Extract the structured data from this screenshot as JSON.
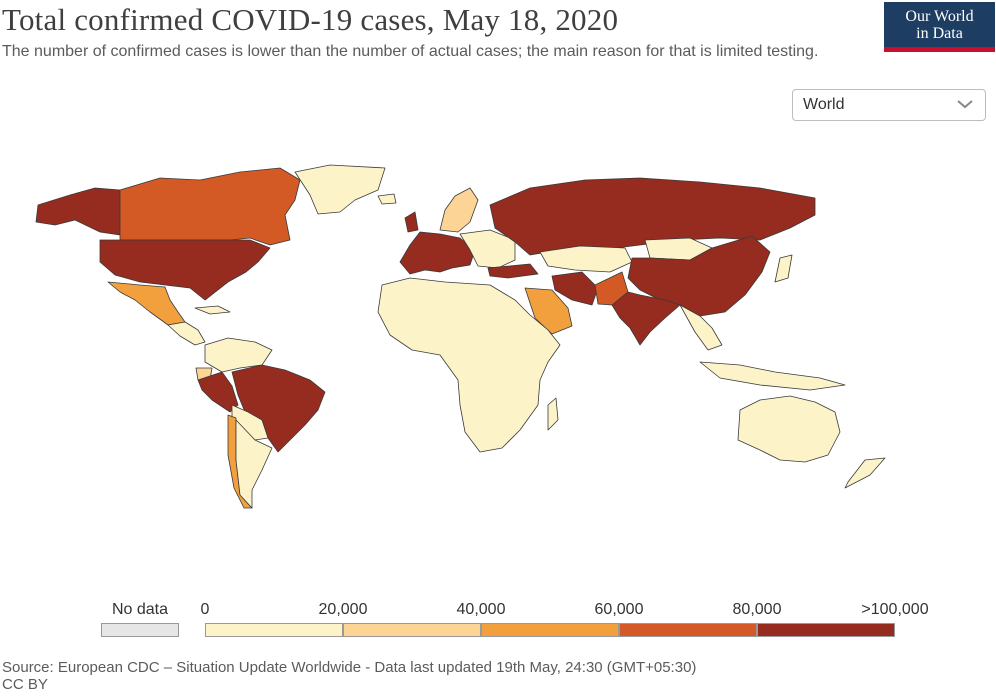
{
  "header": {
    "title": "Total confirmed COVID-19 cases, May 18, 2020",
    "subtitle": "The number of confirmed cases is lower than the number of actual cases; the main reason for that is limited testing."
  },
  "logo": {
    "line1": "Our World",
    "line2": "in Data"
  },
  "region_selector": {
    "value": "World",
    "icon": "chevron-down-icon"
  },
  "legend": {
    "no_data_label": "No data",
    "no_data_color": "#e6e6e6",
    "bins": [
      {
        "from": "0",
        "to": "20,000",
        "color": "#fcf3c9"
      },
      {
        "from": "20,000",
        "to": "40,000",
        "color": "#fbd496"
      },
      {
        "from": "40,000",
        "to": "60,000",
        "color": "#f1a03d"
      },
      {
        "from": "60,000",
        "to": "80,000",
        "color": "#d35a24"
      },
      {
        "from": "80,000",
        "to": ">100,000",
        "color": "#962b1f"
      }
    ],
    "tick_labels": [
      "0",
      "20,000",
      "40,000",
      "60,000",
      "80,000",
      ">100,000"
    ]
  },
  "colors": {
    "border": "#3a3a3a",
    "logo_bg": "#1d3d63",
    "logo_accent": "#c8102e"
  },
  "source": {
    "line1": "Source: European CDC – Situation Update Worldwide - Data last updated 19th May, 24:30 (GMT+05:30)",
    "line2": "CC BY"
  }
}
